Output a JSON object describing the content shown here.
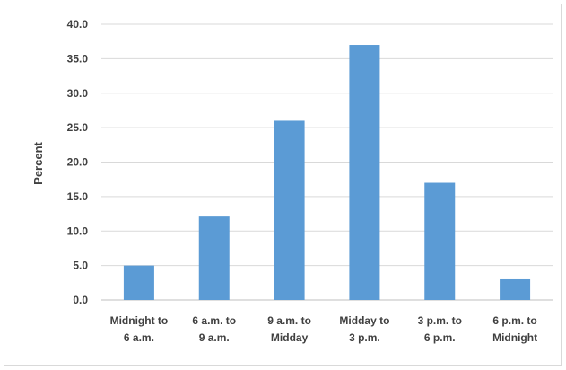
{
  "chart_data": {
    "type": "bar",
    "categories": [
      [
        "Midnight to",
        "6 a.m."
      ],
      [
        "6 a.m. to",
        "9 a.m."
      ],
      [
        "9 a.m. to",
        "Midday"
      ],
      [
        "Midday to",
        "3 p.m."
      ],
      [
        "3 p.m. to",
        "6 p.m."
      ],
      [
        "6 p.m. to",
        "Midnight"
      ]
    ],
    "values": [
      5.0,
      12.1,
      26.0,
      37.0,
      17.0,
      3.0
    ],
    "ylabel": "Percent",
    "xlabel": "",
    "ylim": [
      0,
      40
    ],
    "yticks": [
      "0.0",
      "5.0",
      "10.0",
      "15.0",
      "20.0",
      "25.0",
      "30.0",
      "35.0",
      "40.0"
    ],
    "grid": true,
    "bar_color": "#5b9bd5",
    "grid_color": "#d9d9d9",
    "axis_color": "#bfbfbf"
  }
}
